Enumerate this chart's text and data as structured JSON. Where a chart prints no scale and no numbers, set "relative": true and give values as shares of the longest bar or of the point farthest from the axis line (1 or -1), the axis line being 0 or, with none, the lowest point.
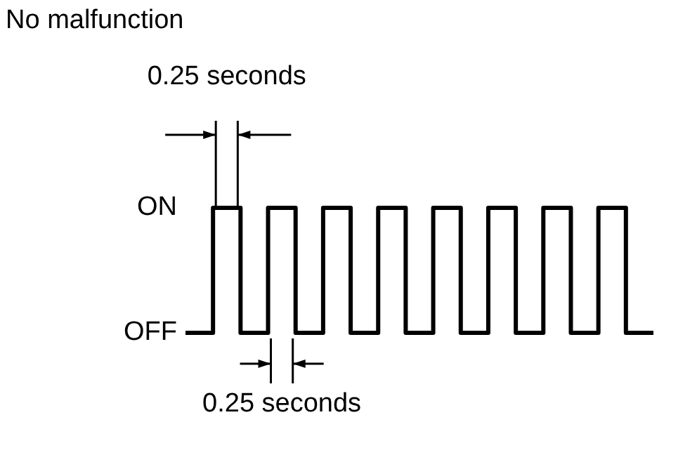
{
  "chart_data": {
    "type": "step",
    "title": "No malfunction",
    "categories": [
      null,
      null,
      null,
      null,
      null,
      null,
      null,
      null,
      null,
      null,
      null,
      null,
      null,
      null,
      null,
      null,
      null,
      null
    ],
    "values": [
      0,
      1,
      0,
      1,
      0,
      1,
      0,
      1,
      0,
      1,
      0,
      1,
      0,
      1,
      0,
      1,
      0,
      0
    ],
    "color": "#000000",
    "relative": true,
    "annotations": [
      "0.25 seconds",
      "ON",
      "OFF",
      "0.25 seconds"
    ],
    "grid": false,
    "marker": "none",
    "line_style": "solid"
  }
}
